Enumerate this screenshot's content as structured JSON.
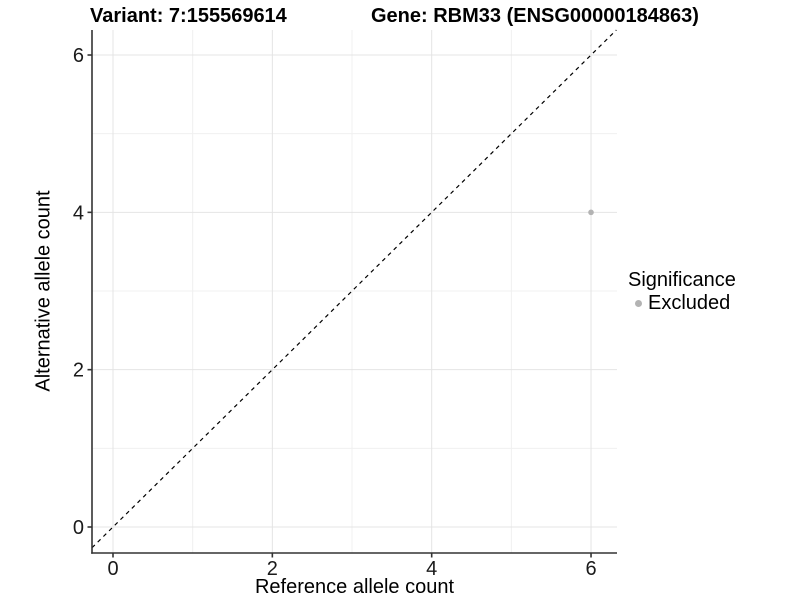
{
  "chart_data": {
    "type": "scatter",
    "titles": [
      "Variant: 7:155569614",
      "Gene: RBM33 (ENSG00000184863)"
    ],
    "xlabel": "Reference allele count",
    "ylabel": "Alternative allele count",
    "xlim": [
      -0.2636,
      6.326
    ],
    "ylim": [
      -0.3305,
      6.318
    ],
    "x_ticks": [
      0,
      2,
      4,
      6
    ],
    "y_ticks": [
      0,
      2,
      4,
      6
    ],
    "x_minor_ticks": [
      1,
      3,
      5
    ],
    "y_minor_ticks": [
      1,
      3,
      5
    ],
    "grid": true,
    "legend_position": "right",
    "reference_line": {
      "slope": 1,
      "intercept": 0,
      "style": "dashed"
    },
    "series": [
      {
        "name": "Excluded",
        "color": "#b3b3b3",
        "points": [
          {
            "x": 6,
            "y": 4
          }
        ]
      }
    ],
    "legend": {
      "title": "Significance",
      "entries": [
        {
          "label": "Excluded",
          "color": "#b3b3b3"
        }
      ]
    }
  },
  "colors": {
    "background": "#ffffff",
    "grid_major": "#e4e4e4",
    "grid_minor": "#f0f0f0",
    "axis_line": "#333333",
    "tick_mark": "#333333",
    "tick_label": "#1a1a1a",
    "reference_line": "#000000",
    "point": "#b3b3b3"
  }
}
